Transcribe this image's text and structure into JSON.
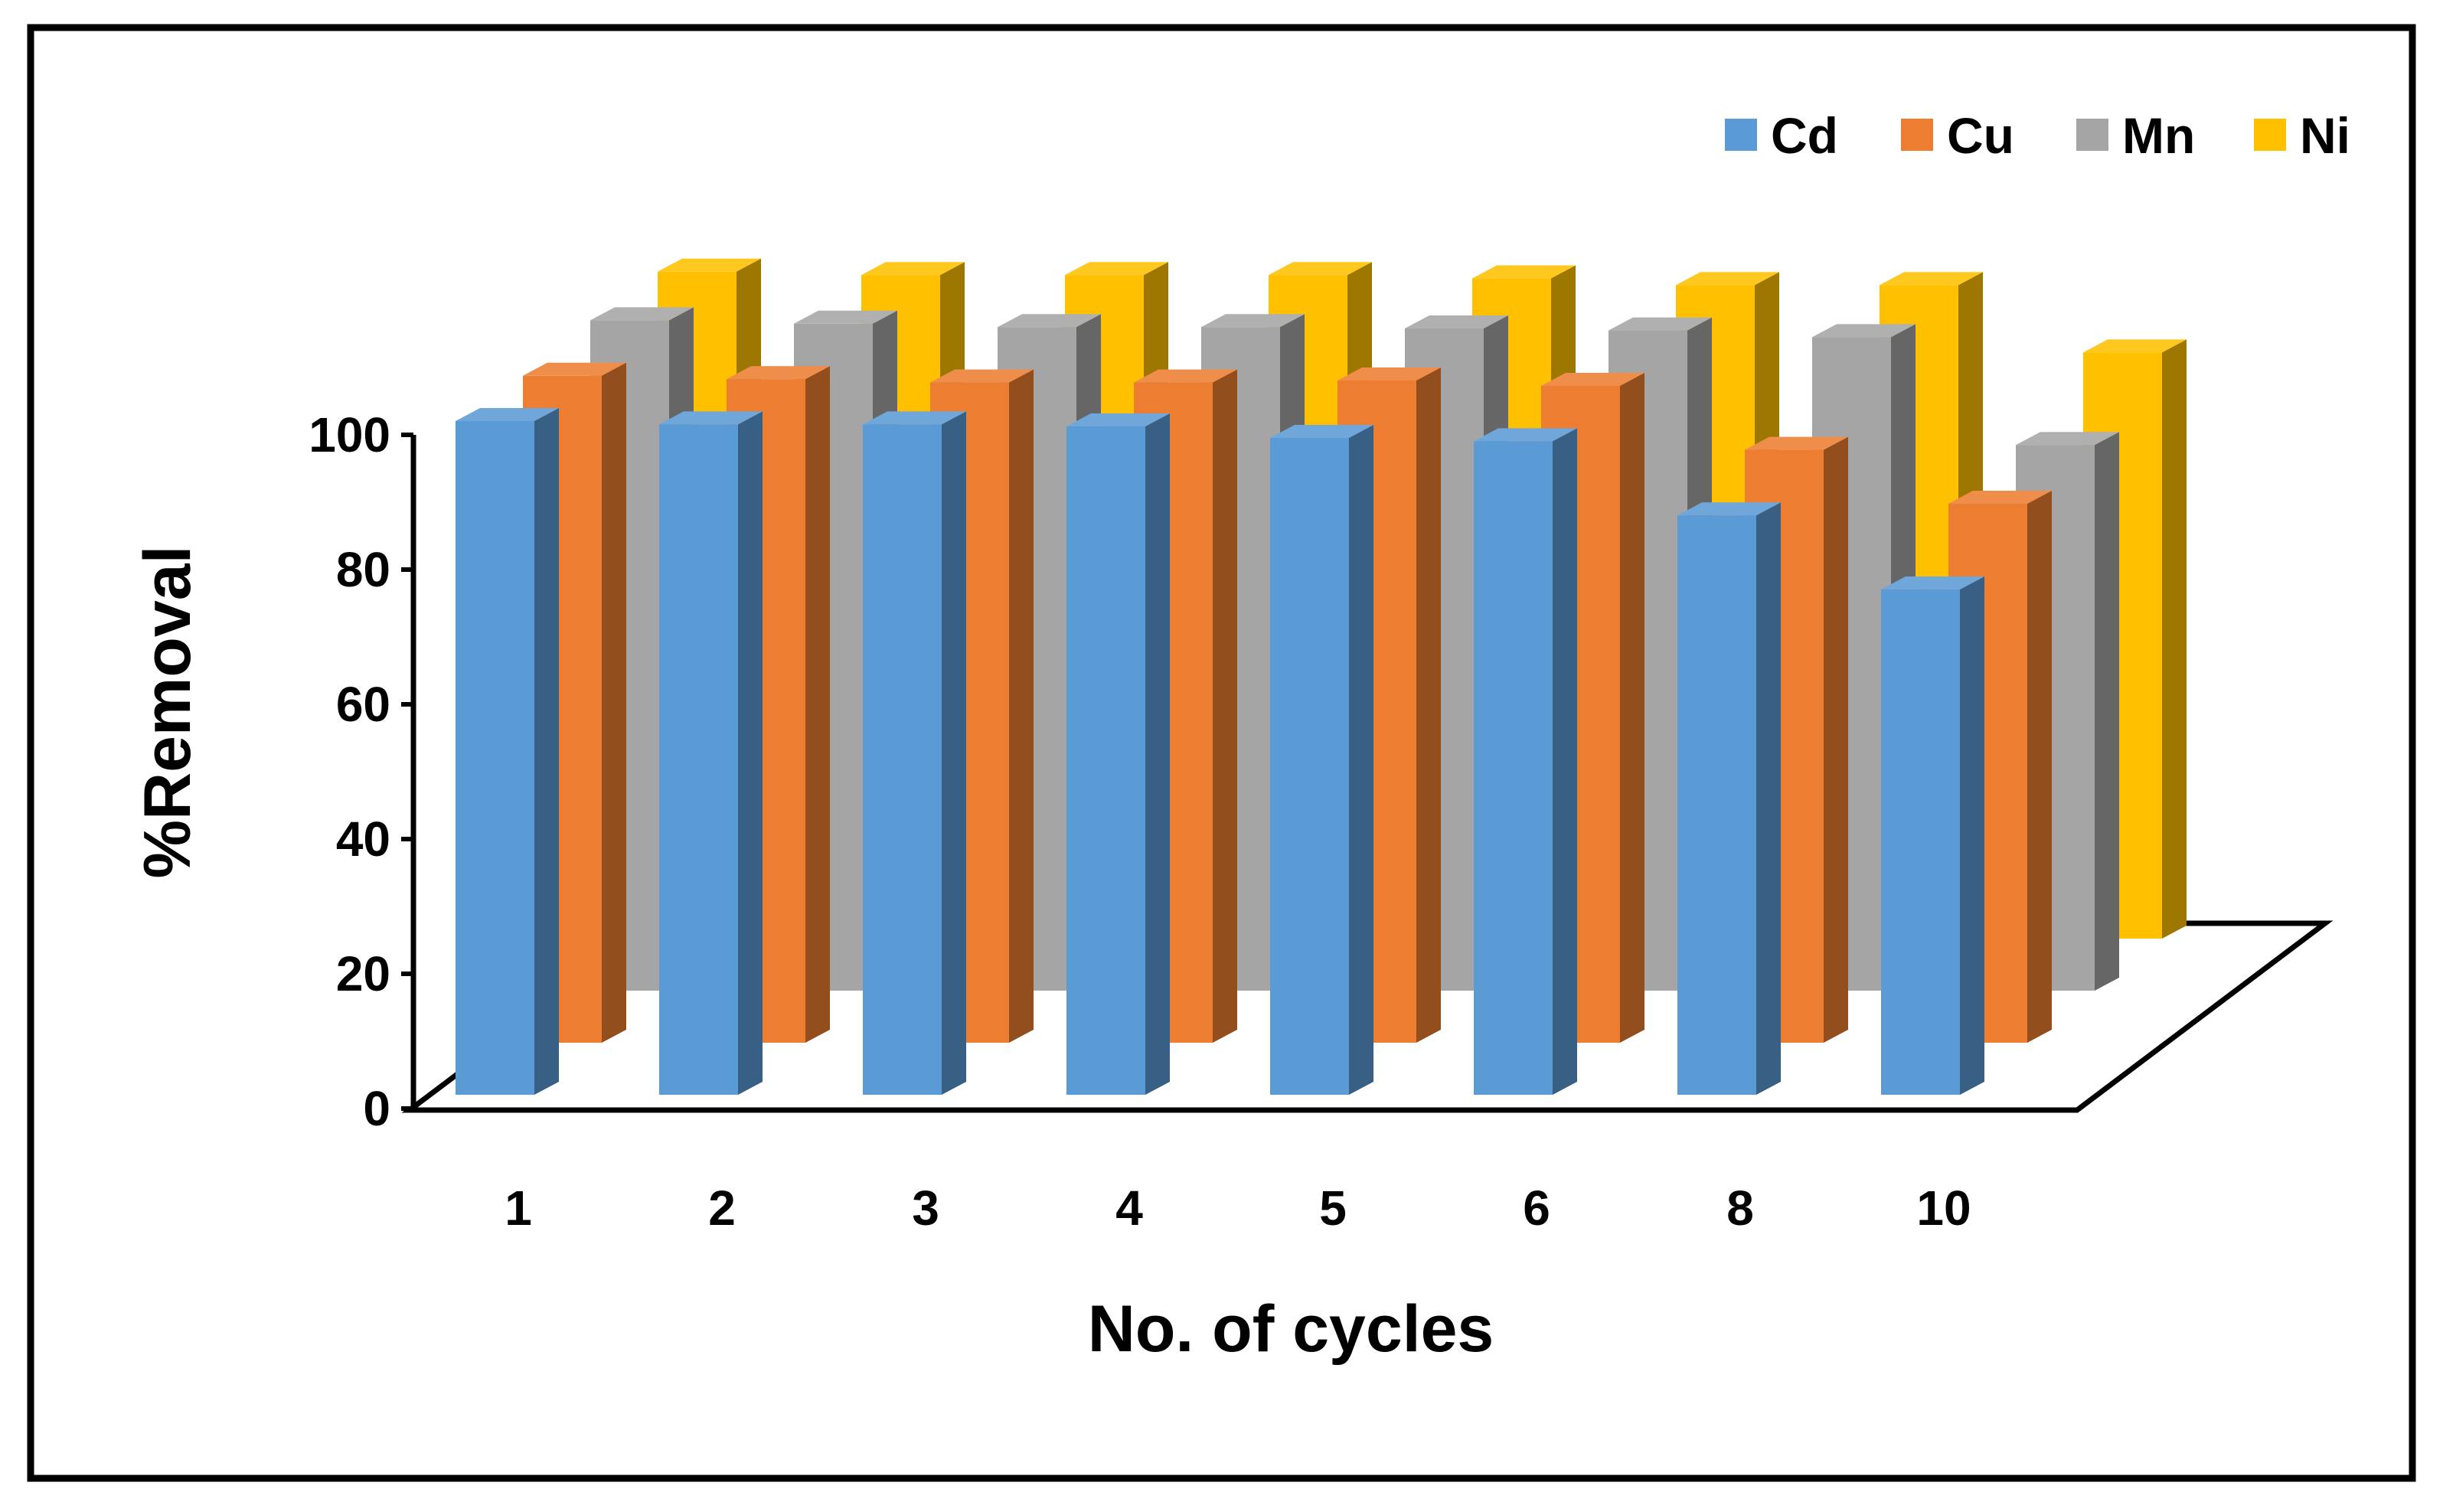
{
  "chart_data": {
    "type": "bar",
    "variant": "3d-clustered-column",
    "title": "",
    "xlabel": "No. of cycles",
    "ylabel": "%Removal",
    "categories": [
      "1",
      "2",
      "3",
      "4",
      "5",
      "6",
      "8",
      "10"
    ],
    "ylim": [
      0,
      100
    ],
    "yticks": [
      "0",
      "20",
      "40",
      "60",
      "80",
      "100"
    ],
    "legend_position": "top-right",
    "series": [
      {
        "name": "Cd",
        "color": "#5B9BD5",
        "values": [
          100,
          99.5,
          99.5,
          99.2,
          97.5,
          97,
          86,
          75
        ]
      },
      {
        "name": "Cu",
        "color": "#ED7D31",
        "values": [
          99,
          98.5,
          98,
          98,
          98.3,
          97.5,
          88,
          80
        ]
      },
      {
        "name": "Mn",
        "color": "#A5A5A5",
        "values": [
          99.5,
          99,
          98.5,
          98.5,
          98.3,
          98,
          97,
          81
        ]
      },
      {
        "name": "Ni",
        "color": "#FFC000",
        "values": [
          99,
          98.5,
          98.5,
          98.5,
          98,
          97,
          97,
          87
        ]
      }
    ]
  }
}
